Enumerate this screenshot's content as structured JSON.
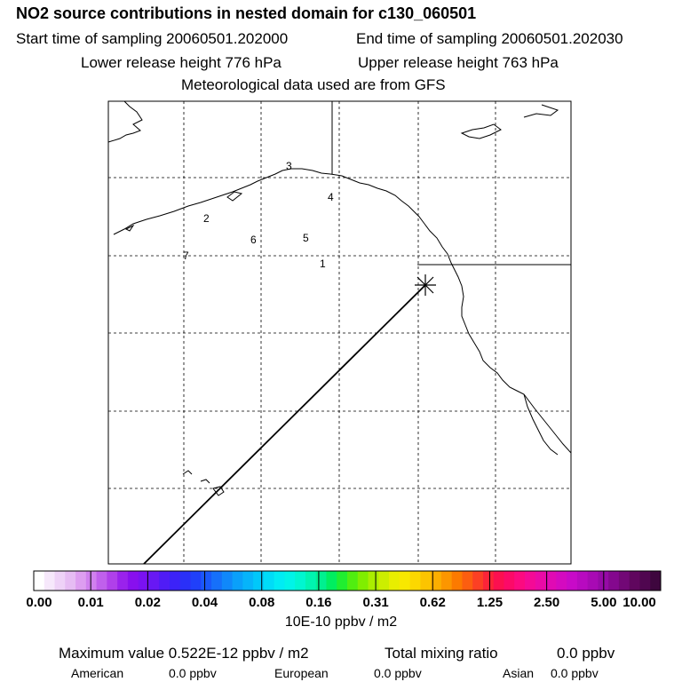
{
  "header": {
    "title": "NO2 source contributions in nested domain for c130_060501",
    "start_time": "Start time of sampling 20060501.202000",
    "end_time": "End time of sampling 20060501.202030",
    "lower_height": "Lower release height  776 hPa",
    "upper_height": "Upper release height  763 hPa",
    "met_data": "Meteorological data used are from GFS"
  },
  "map": {
    "markers": [
      "1",
      "2",
      "3",
      "4",
      "5",
      "6",
      "7"
    ],
    "release_point_symbol": "asterisk"
  },
  "colorbar": {
    "labels": [
      "0.00",
      "0.01",
      "0.02",
      "0.04",
      "0.08",
      "0.16",
      "0.31",
      "0.62",
      "1.25",
      "2.50",
      "5.00",
      "10.00"
    ],
    "colors": [
      "#ffffff",
      "#f6e8fb",
      "#eed2f7",
      "#e6bcf3",
      "#dd9ef0",
      "#d080ee",
      "#c060ec",
      "#b040ea",
      "#9a22ec",
      "#8810ee",
      "#7a12f2",
      "#6818f4",
      "#501cf6",
      "#3c22f8",
      "#2a30f8",
      "#2040fa",
      "#1a58fa",
      "#1670fa",
      "#1088fa",
      "#0aa0fa",
      "#06b4fa",
      "#00c8fa",
      "#00dcf8",
      "#00ecf4",
      "#00f4e8",
      "#00f6d0",
      "#00f4b0",
      "#00f090",
      "#00ee60",
      "#20ee30",
      "#50ee10",
      "#80ee00",
      "#aaee00",
      "#ccee00",
      "#e8ee00",
      "#f8e800",
      "#fcd800",
      "#fcc400",
      "#fcae00",
      "#fc9600",
      "#fc7a00",
      "#fc5e10",
      "#fc4024",
      "#fc2438",
      "#fc1050",
      "#fc0a68",
      "#fc0a80",
      "#f40a96",
      "#ea0aa6",
      "#e00ab4",
      "#d40ac0",
      "#c80ac8",
      "#b80ac0",
      "#a80ab4",
      "#960aa6",
      "#84088e",
      "#720876",
      "#60065e",
      "#500650",
      "#3e063e"
    ],
    "units": "10E-10 ppbv / m2"
  },
  "stats": {
    "max_value": "Maximum value  0.522E-12 ppbv / m2",
    "total_mixing": "Total mixing ratio",
    "total_mixing_value": "0.0 ppbv",
    "american_label": "American",
    "american_value": "0.0 ppbv",
    "european_label": "European",
    "european_value": "0.0 ppbv",
    "asian_label": "Asian",
    "asian_value": "0.0 ppbv"
  }
}
